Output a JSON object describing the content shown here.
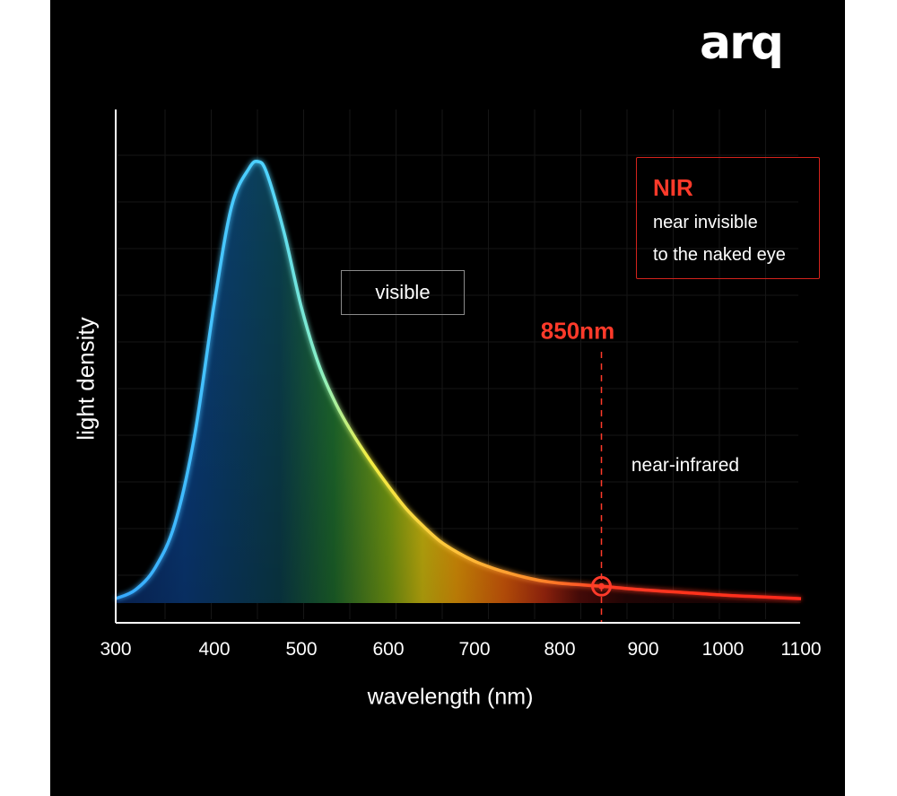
{
  "brand": {
    "logo_text": "arq"
  },
  "chart_data": {
    "type": "area",
    "title": "",
    "xlabel": "wavelength (nm)",
    "ylabel": "light density",
    "xlim": [
      300,
      1100
    ],
    "x_ticks": [
      "300",
      "400",
      "500",
      "600",
      "700",
      "800",
      "900",
      "1000",
      "1100"
    ],
    "grid": true,
    "series": [
      {
        "x": [
          300,
          320,
          340,
          360,
          380,
          400,
          420,
          440,
          450,
          460,
          480,
          500,
          520,
          540,
          560,
          580,
          600,
          620,
          640,
          660,
          680,
          700,
          720,
          740,
          760,
          780,
          800,
          820,
          850,
          900,
          950,
          1000,
          1050,
          1100
        ],
        "y": [
          0.01,
          0.03,
          0.08,
          0.18,
          0.38,
          0.68,
          0.9,
          0.985,
          1.0,
          0.975,
          0.84,
          0.67,
          0.54,
          0.45,
          0.38,
          0.32,
          0.265,
          0.215,
          0.175,
          0.14,
          0.115,
          0.095,
          0.08,
          0.068,
          0.058,
          0.05,
          0.045,
          0.042,
          0.038,
          0.03,
          0.024,
          0.018,
          0.014,
          0.01
        ]
      }
    ],
    "marker": {
      "x": 850,
      "label": "850nm"
    },
    "annotations": {
      "visible_label": "visible",
      "nir_region_label": "near-infrared",
      "nir_box": {
        "title": "NIR",
        "lines": [
          "near invisible",
          "to the naked eye"
        ]
      }
    },
    "colors": {
      "background": "#000000",
      "marker": "#ff3a2a",
      "curve_start": "#35a9ff",
      "curve_mid": "#f2ee44",
      "curve_end": "#ff2a1a"
    }
  }
}
